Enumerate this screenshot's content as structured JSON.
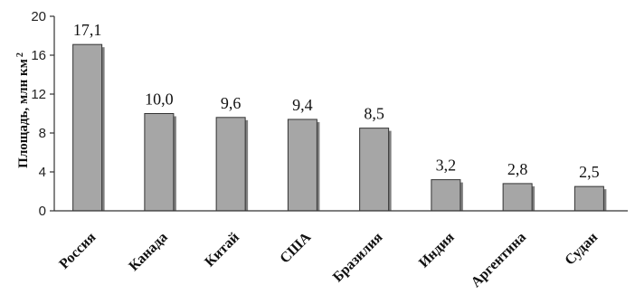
{
  "chart_data": {
    "type": "bar",
    "title": "",
    "xlabel": "",
    "ylabel": "Площадь, млн км",
    "ylabel_superscript": "2",
    "ylim": [
      0,
      20
    ],
    "yticks": [
      0,
      4,
      8,
      12,
      16,
      20
    ],
    "grid": false,
    "legend": "none",
    "bar_color": "#a6a6a6",
    "bar_edge_color": "#333333",
    "categories": [
      "Россия",
      "Канада",
      "Китай",
      "США",
      "Бразилия",
      "Индия",
      "Аргентина",
      "Судан"
    ],
    "values": [
      17.1,
      10.0,
      9.6,
      9.4,
      8.5,
      3.2,
      2.8,
      2.5
    ],
    "value_labels": [
      "17,1",
      "10,0",
      "9,6",
      "9,4",
      "8,5",
      "3,2",
      "2,8",
      "2,5"
    ]
  }
}
